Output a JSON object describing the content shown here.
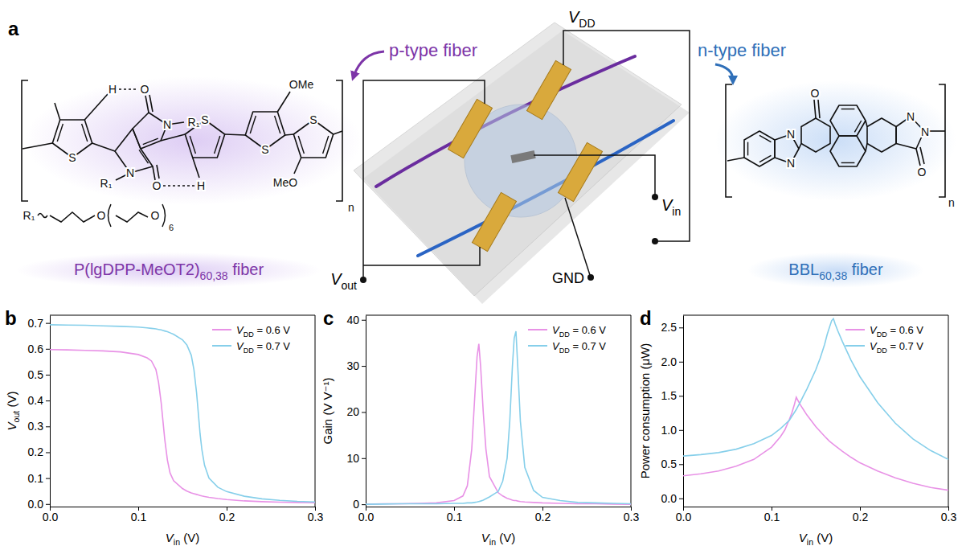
{
  "panel_labels": [
    "a",
    "b",
    "c",
    "d"
  ],
  "schematic": {
    "p_label": "p-type fiber",
    "n_label": "n-type fiber",
    "terminals": {
      "vdd": "VDD",
      "vout": "Vout",
      "vin": "Vin",
      "gnd": "GND"
    }
  },
  "p_polymer": {
    "name": "P(lgDPP-MeOT2)",
    "subscript": "60,38",
    "suffix": " fiber",
    "atoms": [
      "S",
      "O",
      "N",
      "R₁",
      "H",
      "N",
      "R₁",
      "O",
      "H",
      "S",
      "S",
      "OMe",
      "S",
      "MeO",
      "n"
    ],
    "side_chain": [
      "R₁",
      "O",
      "O",
      "6"
    ]
  },
  "n_polymer": {
    "name": "BBL",
    "subscript": "60,38",
    "suffix": " fiber",
    "atoms": [
      "O",
      "N",
      "N",
      "N",
      "N",
      "O",
      "n"
    ]
  },
  "chart_data": [
    {
      "type": "line",
      "x_label": "Vin (V)",
      "y_label": "Vout (V)",
      "x": [
        0,
        0.02,
        0.04,
        0.06,
        0.08,
        0.1,
        0.11,
        0.115,
        0.12,
        0.123,
        0.126,
        0.128,
        0.13,
        0.133,
        0.136,
        0.14,
        0.15,
        0.155,
        0.16,
        0.163,
        0.166,
        0.168,
        0.17,
        0.172,
        0.175,
        0.18,
        0.19,
        0.2,
        0.22,
        0.24,
        0.26,
        0.28,
        0.3
      ],
      "series": [
        {
          "name": "VDD = 0.6 V",
          "color": "#e892e6",
          "values": [
            0.597,
            0.596,
            0.594,
            0.592,
            0.588,
            0.578,
            0.565,
            0.553,
            0.52,
            0.47,
            0.39,
            0.32,
            0.25,
            0.17,
            0.12,
            0.09,
            0.06,
            0.05,
            0.043,
            0.04,
            0.037,
            0.035,
            0.033,
            0.031,
            0.029,
            0.026,
            0.021,
            0.017,
            0.012,
            0.009,
            0.007,
            0.006,
            0.005
          ]
        },
        {
          "name": "VDD = 0.7 V",
          "color": "#86cfea",
          "values": [
            0.693,
            0.692,
            0.691,
            0.689,
            0.687,
            0.684,
            0.681,
            0.679,
            0.677,
            0.675,
            0.673,
            0.671,
            0.669,
            0.666,
            0.662,
            0.656,
            0.635,
            0.615,
            0.575,
            0.52,
            0.43,
            0.35,
            0.27,
            0.21,
            0.15,
            0.1,
            0.065,
            0.048,
            0.03,
            0.02,
            0.014,
            0.01,
            0.008
          ]
        }
      ],
      "xlim": [
        0,
        0.3
      ],
      "xticks": [
        {
          "value": 0,
          "label": "0.0"
        },
        0.1,
        0.2,
        0.3
      ],
      "ylim": [
        -0.01,
        0.73
      ],
      "yticks": [
        {
          "value": 0,
          "label": "0.0"
        },
        0.1,
        0.2,
        0.3,
        0.4,
        0.5,
        0.6,
        0.7
      ],
      "legend": "upper right"
    },
    {
      "type": "line",
      "x_label": "Vin (V)",
      "y_label": "Gain (V V⁻¹)",
      "x": [
        0,
        0.02,
        0.04,
        0.06,
        0.08,
        0.1,
        0.11,
        0.115,
        0.12,
        0.123,
        0.126,
        0.128,
        0.13,
        0.133,
        0.136,
        0.14,
        0.15,
        0.155,
        0.16,
        0.163,
        0.166,
        0.168,
        0.17,
        0.172,
        0.175,
        0.18,
        0.19,
        0.2,
        0.22,
        0.24,
        0.26,
        0.28,
        0.3
      ],
      "series": [
        {
          "name": "VDD = 0.6 V",
          "color": "#e892e6",
          "values": [
            0,
            0.1,
            0.1,
            0.2,
            0.3,
            0.8,
            1.8,
            4,
            12,
            22,
            32,
            34.8,
            30,
            20,
            12,
            6,
            2.5,
            1.8,
            1.3,
            1.1,
            0.9,
            0.8,
            0.8,
            0.7,
            0.6,
            0.5,
            0.4,
            0.3,
            0.2,
            0.1,
            0.1,
            0.05,
            0
          ]
        },
        {
          "name": "VDD = 0.7 V",
          "color": "#86cfea",
          "values": [
            0,
            0.05,
            0.1,
            0.1,
            0.1,
            0.2,
            0.2,
            0.3,
            0.3,
            0.4,
            0.5,
            0.6,
            0.7,
            0.9,
            1.2,
            1.6,
            2.8,
            5,
            10,
            18,
            30,
            36,
            37.5,
            30,
            18,
            8,
            3,
            1.5,
            0.8,
            0.4,
            0.3,
            0.2,
            0.1
          ]
        }
      ],
      "xlim": [
        0,
        0.3
      ],
      "xticks": [
        {
          "value": 0,
          "label": "0.0"
        },
        0.1,
        0.2,
        0.3
      ],
      "ylim": [
        -0.5,
        41
      ],
      "yticks": [
        0,
        10,
        20,
        30,
        40
      ],
      "legend": "upper right"
    },
    {
      "type": "line",
      "x_label": "Vin (V)",
      "y_label": "Power consumption (μW)",
      "x": [
        0,
        0.02,
        0.04,
        0.06,
        0.08,
        0.1,
        0.11,
        0.115,
        0.12,
        0.123,
        0.126,
        0.128,
        0.13,
        0.133,
        0.136,
        0.14,
        0.15,
        0.155,
        0.16,
        0.163,
        0.166,
        0.168,
        0.17,
        0.172,
        0.175,
        0.18,
        0.19,
        0.2,
        0.22,
        0.24,
        0.26,
        0.28,
        0.3
      ],
      "series": [
        {
          "name": "VDD = 0.6 V",
          "color": "#e892e6",
          "values": [
            0.33,
            0.36,
            0.4,
            0.47,
            0.57,
            0.75,
            0.9,
            1.0,
            1.15,
            1.25,
            1.38,
            1.48,
            1.43,
            1.36,
            1.3,
            1.22,
            1.05,
            0.98,
            0.91,
            0.87,
            0.83,
            0.81,
            0.79,
            0.77,
            0.74,
            0.69,
            0.6,
            0.52,
            0.4,
            0.3,
            0.22,
            0.16,
            0.12
          ]
        },
        {
          "name": "VDD = 0.7 V",
          "color": "#86cfea",
          "values": [
            0.62,
            0.64,
            0.67,
            0.72,
            0.8,
            0.92,
            1.02,
            1.08,
            1.14,
            1.2,
            1.26,
            1.3,
            1.35,
            1.42,
            1.5,
            1.6,
            1.88,
            2.05,
            2.25,
            2.4,
            2.52,
            2.6,
            2.63,
            2.55,
            2.45,
            2.3,
            2.02,
            1.78,
            1.4,
            1.1,
            0.87,
            0.7,
            0.57
          ]
        }
      ],
      "xlim": [
        0,
        0.3
      ],
      "xticks": [
        {
          "value": 0,
          "label": "0.0"
        },
        0.1,
        0.2,
        0.3
      ],
      "ylim": [
        -0.12,
        2.68
      ],
      "yticks": [
        {
          "value": 0,
          "label": "0.0"
        },
        0.5,
        {
          "value": 1,
          "label": "1.0"
        },
        1.5,
        {
          "value": 2,
          "label": "2.0"
        },
        2.5
      ],
      "legend": "upper right"
    }
  ]
}
